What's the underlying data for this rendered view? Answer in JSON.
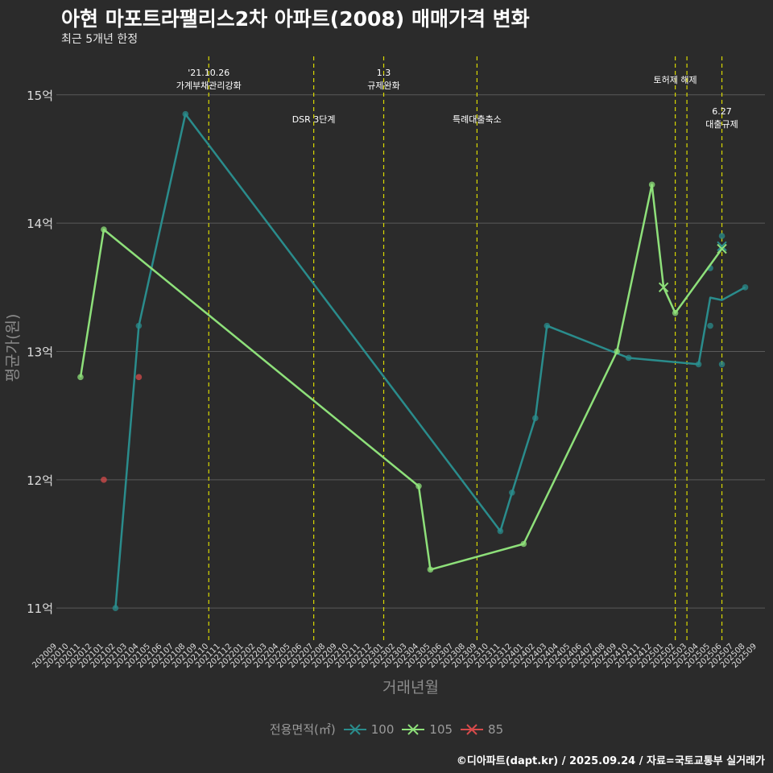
{
  "title": "아현 마포트라팰리스2차 아파트(2008) 매매가격 변화",
  "subtitle": "최근 5개년 한정",
  "caption": "©디아파트(dapt.kr) / 2025.09.24 / 자료=국토교통부 실거래가",
  "colors": {
    "background": "#2b2b2b",
    "grid": "#5a5a5a",
    "event_line": "#d8d800",
    "axis_text": "#dddddd",
    "axis_title": "#8c8c8c"
  },
  "chart_data": {
    "type": "line",
    "xlabel": "거래년월",
    "ylabel": "평균가(원)",
    "ylim": [
      10.75,
      15.3
    ],
    "y_ticks": [
      11,
      12,
      13,
      14,
      15
    ],
    "y_tick_labels": [
      "11억",
      "12억",
      "13억",
      "14억",
      "15억"
    ],
    "x_tick_labels": [
      "202009",
      "202010",
      "202011",
      "202012",
      "202101",
      "202102",
      "202103",
      "202104",
      "202105",
      "202106",
      "202107",
      "202108",
      "202109",
      "202110",
      "202111",
      "202112",
      "202201",
      "202202",
      "202203",
      "202204",
      "202205",
      "202206",
      "202207",
      "202208",
      "202209",
      "202210",
      "202211",
      "202212",
      "202301",
      "202302",
      "202303",
      "202304",
      "202305",
      "202306",
      "202307",
      "202308",
      "202309",
      "202310",
      "202311",
      "202312",
      "202401",
      "202402",
      "202403",
      "202404",
      "202405",
      "202406",
      "202407",
      "202408",
      "202409",
      "202410",
      "202411",
      "202412",
      "202501",
      "202502",
      "202503",
      "202504",
      "202505",
      "202506",
      "202507",
      "202508",
      "202509"
    ],
    "legend_title": "전용면적(㎡)",
    "series": [
      {
        "name": "100",
        "color": "#2a8c8c",
        "line": [
          [
            5,
            11.0
          ],
          [
            7,
            13.2
          ],
          [
            11,
            14.85
          ],
          [
            38,
            11.6
          ],
          [
            39,
            11.9
          ],
          [
            41,
            12.48
          ],
          [
            42,
            13.2
          ],
          [
            49,
            12.95
          ],
          [
            55,
            12.9
          ],
          [
            56,
            13.42
          ],
          [
            57,
            13.4
          ],
          [
            59,
            13.5
          ]
        ],
        "points": [
          [
            5,
            11.0
          ],
          [
            7,
            13.2
          ],
          [
            11,
            14.85
          ],
          [
            38,
            11.6
          ],
          [
            39,
            11.9
          ],
          [
            41,
            12.48
          ],
          [
            42,
            13.2
          ],
          [
            49,
            12.95
          ],
          [
            55,
            12.9
          ],
          [
            56,
            13.2
          ],
          [
            56,
            13.65
          ],
          [
            57,
            13.9
          ],
          [
            57,
            12.9
          ],
          [
            59,
            13.5
          ]
        ],
        "cross": [
          [
            57,
            13.82
          ]
        ]
      },
      {
        "name": "105",
        "color": "#8ee07a",
        "line": [
          [
            2,
            12.8
          ],
          [
            4,
            13.95
          ],
          [
            31,
            11.95
          ],
          [
            32,
            11.3
          ],
          [
            40,
            11.5
          ],
          [
            48,
            13.0
          ],
          [
            51,
            14.3
          ],
          [
            52,
            13.5
          ],
          [
            53,
            13.3
          ],
          [
            57,
            13.8
          ]
        ],
        "points": [
          [
            2,
            12.8
          ],
          [
            4,
            13.95
          ],
          [
            31,
            11.95
          ],
          [
            32,
            11.3
          ],
          [
            40,
            11.5
          ],
          [
            48,
            13.0
          ],
          [
            51,
            14.3
          ],
          [
            53,
            13.3
          ]
        ],
        "cross": [
          [
            52,
            13.5
          ],
          [
            57,
            13.8
          ]
        ]
      },
      {
        "name": "85",
        "color": "#d64b4b",
        "line": [],
        "points": [
          [
            4,
            12.0
          ],
          [
            7,
            12.8
          ]
        ],
        "cross": []
      }
    ],
    "events": [
      {
        "x": 13,
        "label": [
          "'21.10.26",
          "가계부채관리강화"
        ],
        "row": "top"
      },
      {
        "x": 22,
        "label": [
          "DSR 3단계"
        ],
        "row": "mid"
      },
      {
        "x": 28,
        "label": [
          "1.3",
          "규제완화"
        ],
        "row": "top"
      },
      {
        "x": 36,
        "label": [
          "특례대출축소"
        ],
        "row": "mid"
      },
      {
        "x": 53,
        "label": [
          "토허제 해제"
        ],
        "row": "top"
      },
      {
        "x": 54,
        "label": [],
        "row": "top"
      },
      {
        "x": 57,
        "label": [
          "6.27",
          "대출규제"
        ],
        "row": "low"
      }
    ]
  }
}
